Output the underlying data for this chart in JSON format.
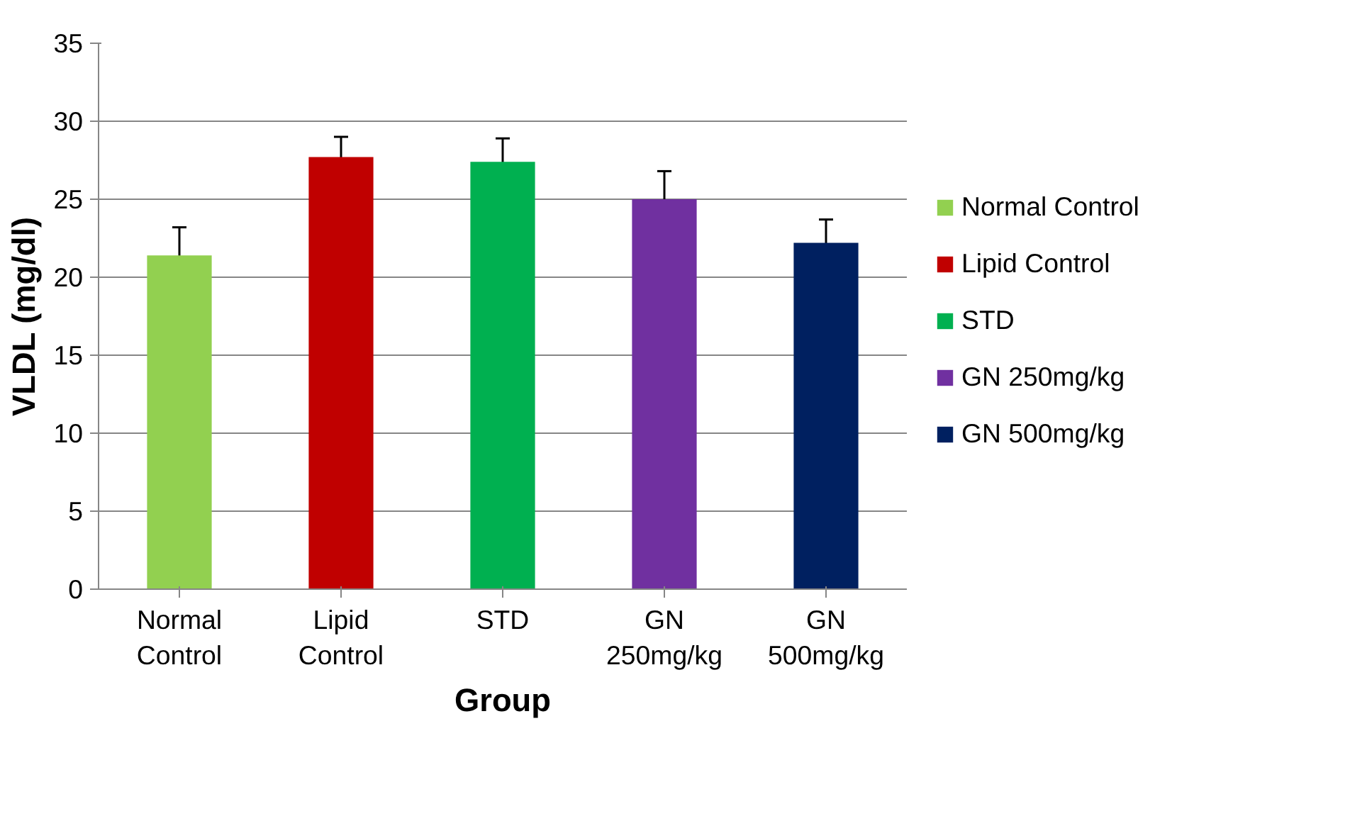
{
  "chart_data": {
    "type": "bar",
    "xlabel": "Group",
    "ylabel": "VLDL (mg/dl)",
    "categories": [
      "Normal Control",
      "Lipid Control",
      "STD",
      "GN 250mg/kg",
      "GN 500mg/kg"
    ],
    "series": [
      {
        "name": "Normal Control",
        "color": "#92d050",
        "values": [
          21.4,
          null,
          null,
          null,
          null
        ],
        "errors": [
          1.8,
          null,
          null,
          null,
          null
        ]
      },
      {
        "name": "Lipid Control",
        "color": "#c00000",
        "values": [
          null,
          27.7,
          null,
          null,
          null
        ],
        "errors": [
          null,
          1.3,
          null,
          null,
          null
        ]
      },
      {
        "name": "STD",
        "color": "#00b050",
        "values": [
          null,
          null,
          27.4,
          null,
          null
        ],
        "errors": [
          null,
          null,
          1.5,
          null,
          null
        ]
      },
      {
        "name": "GN 250mg/kg",
        "color": "#7030a0",
        "values": [
          null,
          null,
          null,
          25.0,
          null
        ],
        "errors": [
          null,
          null,
          null,
          1.8,
          null
        ]
      },
      {
        "name": "GN 500mg/kg",
        "color": "#002060",
        "values": [
          null,
          null,
          null,
          null,
          22.2
        ],
        "errors": [
          null,
          null,
          null,
          null,
          1.5
        ]
      }
    ],
    "ylim": [
      0,
      35
    ],
    "yticks": [
      0,
      5,
      10,
      15,
      20,
      25,
      30,
      35
    ],
    "grid": "y",
    "legend": "right"
  }
}
